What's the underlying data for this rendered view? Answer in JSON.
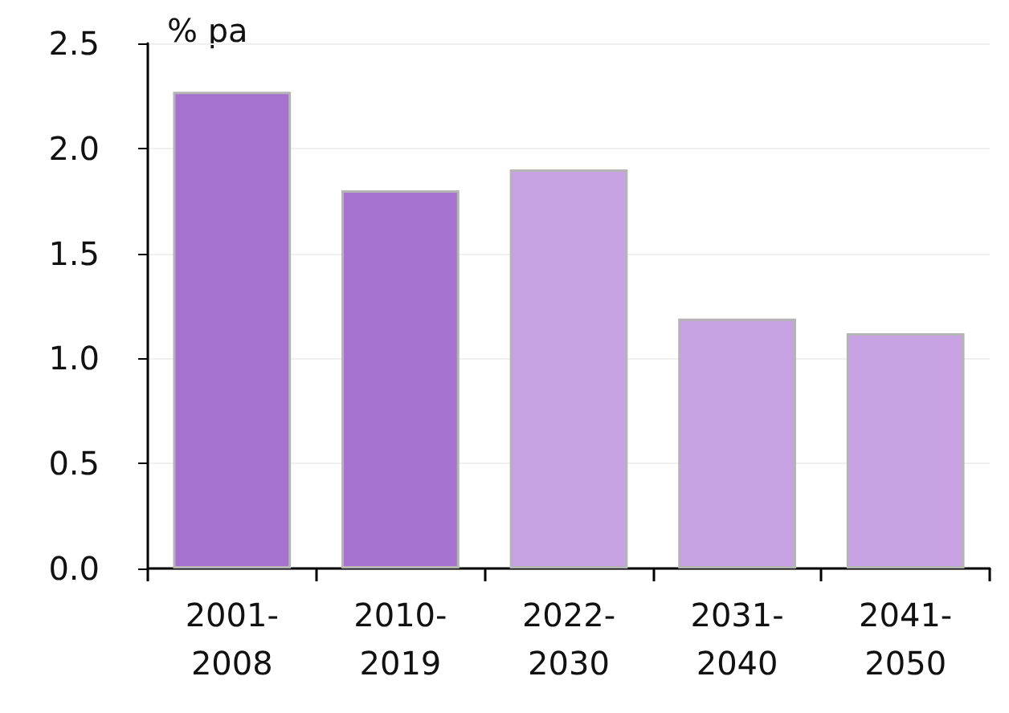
{
  "chart_data": {
    "type": "bar",
    "ylabel": "% pa",
    "categories": [
      "2001-\n2008",
      "2010-\n2019",
      "2022-\n2030",
      "2031-\n2040",
      "2041-\n2050"
    ],
    "values": [
      2.27,
      1.8,
      1.9,
      1.19,
      1.12
    ],
    "colors": [
      "#a672d0",
      "#a672d0",
      "#c6a2e2",
      "#c6a2e2",
      "#c6a2e2"
    ],
    "ylim": [
      0,
      2.5
    ],
    "yticks": [
      {
        "value": 0,
        "label": "0.0"
      },
      0.5,
      {
        "value": 1,
        "label": "1.0"
      },
      1.5,
      {
        "value": 2,
        "label": "2.0"
      },
      2.5
    ],
    "grid": "y"
  }
}
